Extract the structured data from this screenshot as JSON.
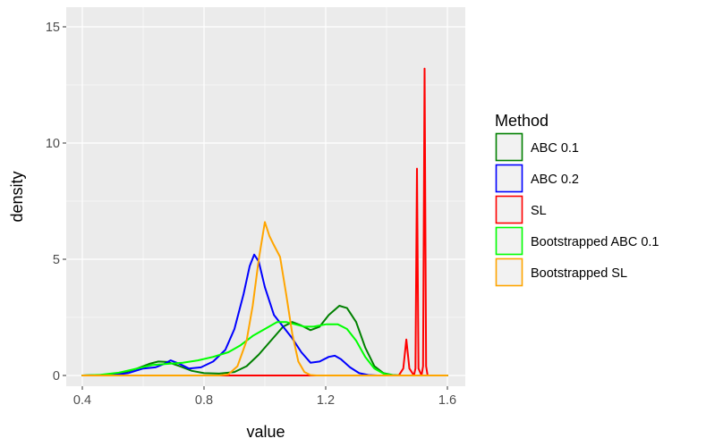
{
  "chart_data": {
    "type": "line",
    "title": "",
    "xlabel": "value",
    "ylabel": "density",
    "xlim": [
      0.4,
      1.6
    ],
    "ylim": [
      0,
      15
    ],
    "x_ticks": [
      "0.4",
      "0.8",
      "1.2",
      "1.6"
    ],
    "y_ticks": [
      "0",
      "5",
      "10",
      "15"
    ],
    "grid": true,
    "legend": {
      "title": "Method",
      "placement": "right"
    },
    "series": [
      {
        "name": "ABC 0.1",
        "color": "#008000",
        "points": [
          [
            0.4,
            0
          ],
          [
            0.48,
            0.03
          ],
          [
            0.53,
            0.1
          ],
          [
            0.58,
            0.3
          ],
          [
            0.62,
            0.5
          ],
          [
            0.65,
            0.6
          ],
          [
            0.68,
            0.58
          ],
          [
            0.72,
            0.4
          ],
          [
            0.76,
            0.2
          ],
          [
            0.8,
            0.1
          ],
          [
            0.85,
            0.08
          ],
          [
            0.9,
            0.15
          ],
          [
            0.94,
            0.4
          ],
          [
            0.98,
            0.9
          ],
          [
            1.02,
            1.5
          ],
          [
            1.06,
            2.1
          ],
          [
            1.09,
            2.3
          ],
          [
            1.12,
            2.15
          ],
          [
            1.15,
            1.95
          ],
          [
            1.18,
            2.1
          ],
          [
            1.21,
            2.6
          ],
          [
            1.245,
            3.0
          ],
          [
            1.27,
            2.9
          ],
          [
            1.3,
            2.3
          ],
          [
            1.33,
            1.2
          ],
          [
            1.36,
            0.4
          ],
          [
            1.39,
            0.1
          ],
          [
            1.42,
            0.02
          ],
          [
            1.45,
            0
          ],
          [
            1.6,
            0
          ]
        ]
      },
      {
        "name": "ABC 0.2",
        "color": "#0000ff",
        "points": [
          [
            0.4,
            0
          ],
          [
            0.5,
            0.02
          ],
          [
            0.55,
            0.1
          ],
          [
            0.6,
            0.3
          ],
          [
            0.64,
            0.35
          ],
          [
            0.67,
            0.5
          ],
          [
            0.69,
            0.65
          ],
          [
            0.72,
            0.5
          ],
          [
            0.75,
            0.3
          ],
          [
            0.79,
            0.35
          ],
          [
            0.83,
            0.6
          ],
          [
            0.87,
            1.1
          ],
          [
            0.9,
            2.0
          ],
          [
            0.93,
            3.5
          ],
          [
            0.95,
            4.7
          ],
          [
            0.965,
            5.2
          ],
          [
            0.98,
            4.9
          ],
          [
            1.0,
            3.8
          ],
          [
            1.03,
            2.6
          ],
          [
            1.06,
            2.1
          ],
          [
            1.09,
            1.6
          ],
          [
            1.12,
            1.0
          ],
          [
            1.15,
            0.55
          ],
          [
            1.18,
            0.6
          ],
          [
            1.21,
            0.8
          ],
          [
            1.23,
            0.85
          ],
          [
            1.25,
            0.7
          ],
          [
            1.28,
            0.35
          ],
          [
            1.31,
            0.1
          ],
          [
            1.34,
            0.02
          ],
          [
            1.37,
            0
          ],
          [
            1.6,
            0
          ]
        ]
      },
      {
        "name": "SL",
        "color": "#ff0000",
        "points": [
          [
            0.4,
            0
          ],
          [
            1.44,
            0
          ],
          [
            1.455,
            0.3
          ],
          [
            1.465,
            1.55
          ],
          [
            1.475,
            0.3
          ],
          [
            1.49,
            0
          ],
          [
            1.495,
            0.3
          ],
          [
            1.5,
            8.9
          ],
          [
            1.505,
            0.3
          ],
          [
            1.515,
            0
          ],
          [
            1.52,
            0.4
          ],
          [
            1.525,
            13.2
          ],
          [
            1.53,
            0.4
          ],
          [
            1.535,
            0
          ],
          [
            1.6,
            0
          ]
        ]
      },
      {
        "name": "Bootstrapped ABC 0.1",
        "color": "#00ff00",
        "points": [
          [
            0.4,
            0
          ],
          [
            0.46,
            0.03
          ],
          [
            0.52,
            0.12
          ],
          [
            0.58,
            0.3
          ],
          [
            0.63,
            0.45
          ],
          [
            0.68,
            0.5
          ],
          [
            0.73,
            0.55
          ],
          [
            0.78,
            0.65
          ],
          [
            0.83,
            0.8
          ],
          [
            0.88,
            1.0
          ],
          [
            0.92,
            1.3
          ],
          [
            0.96,
            1.7
          ],
          [
            1.0,
            2.0
          ],
          [
            1.04,
            2.3
          ],
          [
            1.07,
            2.3
          ],
          [
            1.1,
            2.2
          ],
          [
            1.13,
            2.1
          ],
          [
            1.16,
            2.1
          ],
          [
            1.2,
            2.2
          ],
          [
            1.24,
            2.2
          ],
          [
            1.27,
            2.0
          ],
          [
            1.3,
            1.5
          ],
          [
            1.33,
            0.8
          ],
          [
            1.36,
            0.3
          ],
          [
            1.39,
            0.08
          ],
          [
            1.42,
            0.01
          ],
          [
            1.45,
            0
          ],
          [
            1.6,
            0
          ]
        ]
      },
      {
        "name": "Bootstrapped SL",
        "color": "#ffa500",
        "points": [
          [
            0.4,
            0
          ],
          [
            0.85,
            0
          ],
          [
            0.88,
            0.05
          ],
          [
            0.91,
            0.4
          ],
          [
            0.94,
            1.5
          ],
          [
            0.96,
            3.0
          ],
          [
            0.98,
            5.0
          ],
          [
            1.0,
            6.6
          ],
          [
            1.015,
            6.0
          ],
          [
            1.03,
            5.6
          ],
          [
            1.05,
            5.1
          ],
          [
            1.07,
            3.5
          ],
          [
            1.09,
            1.8
          ],
          [
            1.11,
            0.6
          ],
          [
            1.13,
            0.15
          ],
          [
            1.15,
            0.02
          ],
          [
            1.17,
            0
          ],
          [
            1.6,
            0
          ]
        ]
      }
    ]
  }
}
